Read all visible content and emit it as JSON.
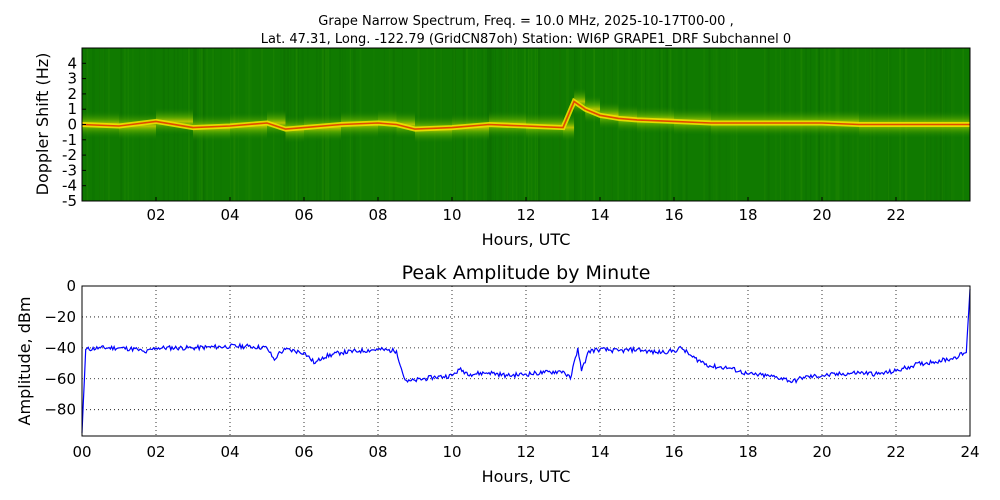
{
  "figure": {
    "title_line1": "Grape Narrow Spectrum, Freq. = 10.0 MHz, 2025-10-17T00-00 ,",
    "title_line2": "Lat.  47.31, Long. -122.79 (GridCN87oh) Station: WI6P GRAPE1_DRF Subchannel 0"
  },
  "colors": {
    "spectrogram_background": "#107a00",
    "spectrogram_mid": "#7fbf00",
    "spectrogram_high": "#f0e000",
    "spectrogram_peak": "#e03000",
    "amplitude_line": "#0000ff"
  },
  "chart_data": [
    {
      "type": "heatmap",
      "title": "",
      "xlabel": "Hours, UTC",
      "ylabel": "Doppler Shift (Hz)",
      "x_ticks": [
        "02",
        "04",
        "06",
        "08",
        "10",
        "12",
        "14",
        "16",
        "18",
        "20",
        "22"
      ],
      "y_ticks": [
        "4",
        "3",
        "2",
        "1",
        "0",
        "-1",
        "-2",
        "-3",
        "-4",
        "-5"
      ],
      "xlim": [
        0,
        24
      ],
      "ylim": [
        -5,
        5
      ],
      "colormap": "green-yellow-red (low to high power)",
      "dominant_trace": {
        "description": "carrier near 0 Hz",
        "hours": [
          0,
          1,
          2,
          3,
          4,
          5,
          5.5,
          6,
          7,
          8,
          8.5,
          9,
          10,
          11,
          12,
          13,
          13.3,
          13.6,
          14,
          14.5,
          15,
          16,
          17,
          18,
          19,
          20,
          21,
          22,
          23,
          24
        ],
        "doppler_hz": [
          0,
          -0.1,
          0.2,
          -0.2,
          -0.1,
          0.1,
          -0.3,
          -0.2,
          0,
          0.1,
          0,
          -0.3,
          -0.2,
          0,
          -0.1,
          -0.2,
          1.5,
          1.0,
          0.6,
          0.4,
          0.3,
          0.2,
          0.1,
          0.1,
          0.1,
          0.1,
          0,
          0,
          0,
          0
        ]
      },
      "grid": false
    },
    {
      "type": "line",
      "title": "Peak Amplitude by Minute",
      "xlabel": "Hours, UTC",
      "ylabel": "Amplitude, dBm",
      "x_ticks": [
        "00",
        "02",
        "04",
        "06",
        "08",
        "10",
        "12",
        "14",
        "16",
        "18",
        "20",
        "22",
        "24"
      ],
      "y_ticks": [
        "0",
        "−20",
        "−40",
        "−60",
        "−80"
      ],
      "xlim": [
        0,
        24
      ],
      "ylim": [
        -97,
        0
      ],
      "grid": true,
      "series": [
        {
          "x": [
            0,
            0.1,
            0.5,
            1,
            1.5,
            1.7,
            2,
            3,
            4,
            4.5,
            5,
            5.2,
            5.3,
            5.5,
            6,
            6.3,
            6.5,
            7,
            7.5,
            8,
            8.5,
            8.7,
            8.8,
            9,
            9.5,
            10,
            10.2,
            10.5,
            11,
            11.5,
            12,
            12.5,
            13,
            13.2,
            13.4,
            13.5,
            13.7,
            14,
            14.5,
            15,
            15.5,
            16,
            16.2,
            16.5,
            17,
            17.5,
            18,
            18.5,
            19,
            19.2,
            19.5,
            20,
            20.5,
            21,
            21.5,
            22,
            22.5,
            23,
            23.5,
            23.9,
            24
          ],
          "y": [
            -95,
            -41,
            -40,
            -40,
            -41,
            -43,
            -40,
            -40,
            -39,
            -39,
            -40,
            -48,
            -44,
            -41,
            -43,
            -50,
            -46,
            -43,
            -42,
            -41,
            -42,
            -59,
            -62,
            -61,
            -59,
            -58,
            -54,
            -57,
            -56,
            -58,
            -57,
            -56,
            -55,
            -60,
            -40,
            -55,
            -42,
            -41,
            -42,
            -41,
            -43,
            -42,
            -40,
            -46,
            -52,
            -53,
            -57,
            -58,
            -60,
            -62,
            -59,
            -58,
            -57,
            -56,
            -57,
            -55,
            -51,
            -49,
            -47,
            -43,
            -2
          ]
        }
      ]
    }
  ]
}
